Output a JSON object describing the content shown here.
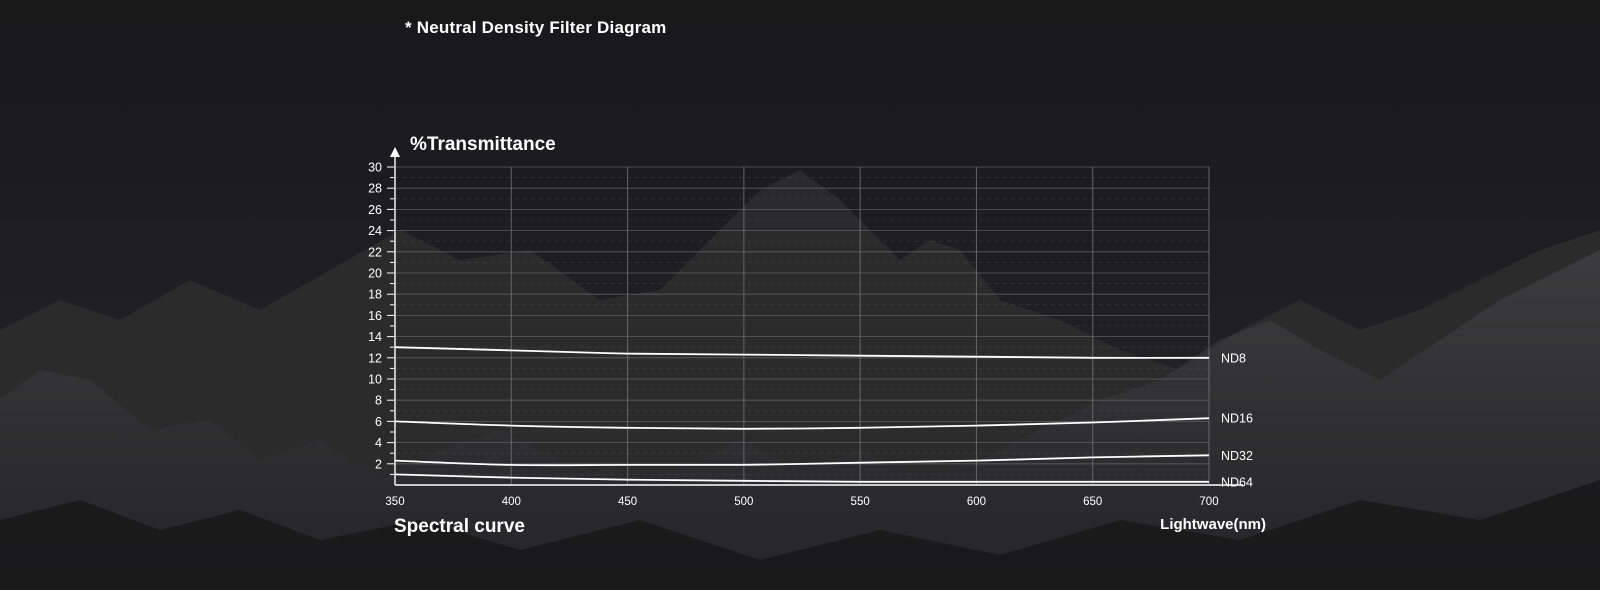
{
  "note": "* Neutral Density Filter Diagram",
  "chart_data": {
    "type": "line",
    "ylabel": "%Transmittance",
    "xlabel": "Lightwave(nm)",
    "caption": "Spectral curve",
    "xlim": [
      350,
      700
    ],
    "ylim": [
      0,
      30
    ],
    "x_ticks": [
      "350",
      "400",
      "450",
      "500",
      "550",
      "600",
      "650",
      "700"
    ],
    "y_ticks": [
      "2",
      "4",
      "6",
      "8",
      "10",
      "12",
      "14",
      "16",
      "18",
      "20",
      "22",
      "24",
      "26",
      "28",
      "30"
    ],
    "grid": true,
    "series": [
      {
        "name": "ND8",
        "x": [
          350,
          400,
          450,
          500,
          550,
          600,
          650,
          700
        ],
        "y": [
          13.0,
          12.7,
          12.4,
          12.3,
          12.2,
          12.1,
          12.0,
          12.0
        ]
      },
      {
        "name": "ND16",
        "x": [
          350,
          400,
          450,
          500,
          550,
          600,
          650,
          700
        ],
        "y": [
          6.0,
          5.6,
          5.4,
          5.3,
          5.4,
          5.6,
          5.9,
          6.3
        ]
      },
      {
        "name": "ND32",
        "x": [
          350,
          400,
          450,
          500,
          550,
          600,
          650,
          700
        ],
        "y": [
          2.3,
          1.9,
          1.9,
          1.9,
          2.1,
          2.3,
          2.6,
          2.8
        ]
      },
      {
        "name": "ND64",
        "x": [
          350,
          400,
          450,
          500,
          550,
          600,
          650,
          700
        ],
        "y": [
          1.0,
          0.7,
          0.5,
          0.4,
          0.3,
          0.3,
          0.3,
          0.3
        ]
      }
    ]
  }
}
